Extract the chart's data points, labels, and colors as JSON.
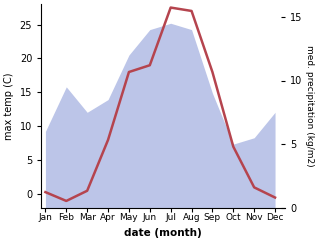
{
  "months": [
    "Jan",
    "Feb",
    "Mar",
    "Apr",
    "May",
    "Jun",
    "Jul",
    "Aug",
    "Sep",
    "Oct",
    "Nov",
    "Dec"
  ],
  "month_x": [
    1,
    2,
    3,
    4,
    5,
    6,
    7,
    8,
    9,
    10,
    11,
    12
  ],
  "temperature": [
    0.3,
    -1.0,
    0.5,
    8.0,
    18.0,
    19.0,
    27.5,
    27.0,
    18.0,
    7.0,
    1.0,
    -0.5
  ],
  "precipitation": [
    6.0,
    9.5,
    7.5,
    8.5,
    12.0,
    14.0,
    14.5,
    14.0,
    9.0,
    5.0,
    5.5,
    7.5
  ],
  "temp_color": "#b5444e",
  "precip_fill_color": "#bcc5e8",
  "temp_ylim": [
    -2,
    28
  ],
  "temp_yticks": [
    0,
    5,
    10,
    15,
    20,
    25
  ],
  "precip_ylim": [
    0,
    16
  ],
  "precip_yticks": [
    0,
    5,
    10,
    15
  ],
  "ylabel_left": "max temp (C)",
  "ylabel_right": "med. precipitation (kg/m2)",
  "xlabel": "date (month)",
  "figsize": [
    3.18,
    2.42
  ],
  "dpi": 100
}
